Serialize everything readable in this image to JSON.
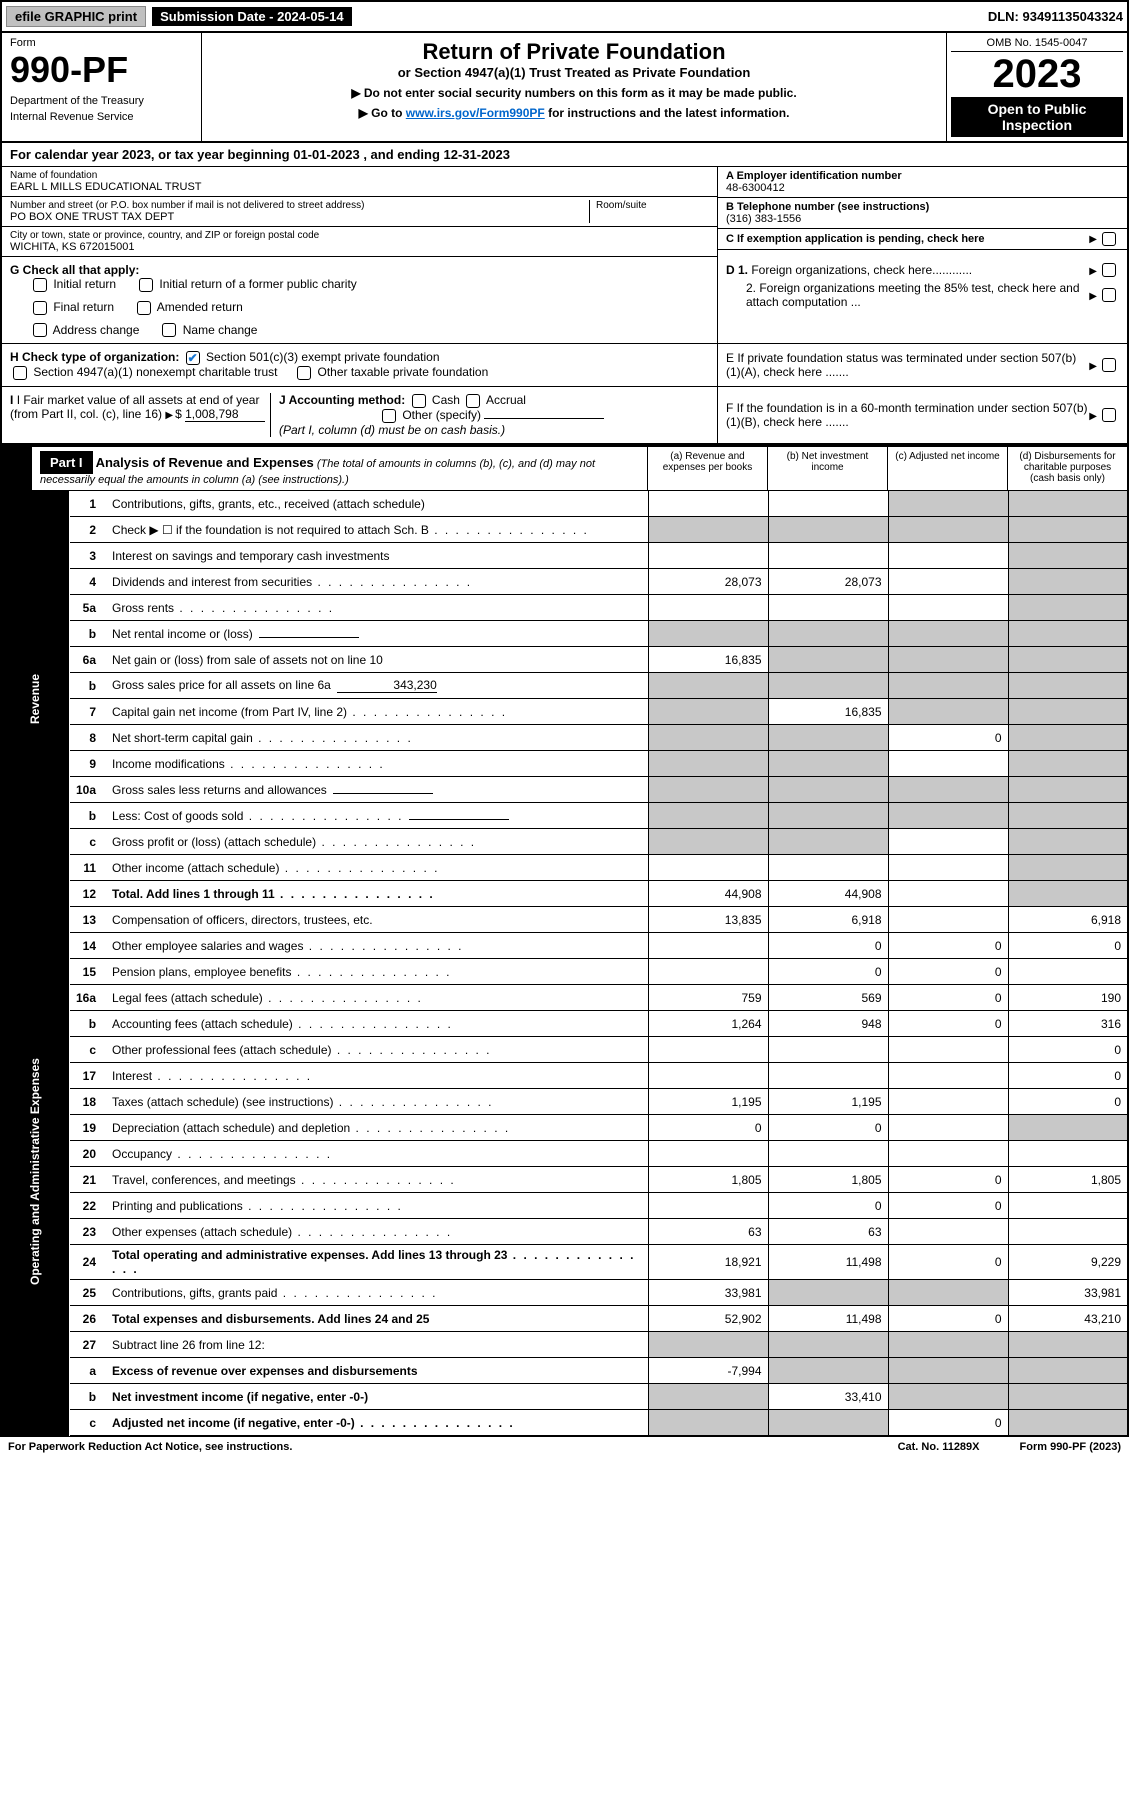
{
  "top_bar": {
    "efile_label": "efile GRAPHIC print",
    "submission_label": "Submission Date - 2024-05-14",
    "dln": "DLN: 93491135043324"
  },
  "header": {
    "form_word": "Form",
    "form_number": "990-PF",
    "dept": "Department of the Treasury",
    "irs": "Internal Revenue Service",
    "title": "Return of Private Foundation",
    "subtitle": "or Section 4947(a)(1) Trust Treated as Private Foundation",
    "note1": "▶ Do not enter social security numbers on this form as it may be made public.",
    "note2_pre": "▶ Go to ",
    "note2_link": "www.irs.gov/Form990PF",
    "note2_post": " for instructions and the latest information.",
    "omb": "OMB No. 1545-0047",
    "year": "2023",
    "open": "Open to Public Inspection"
  },
  "cal_year": "For calendar year 2023, or tax year beginning 01-01-2023            , and ending 12-31-2023",
  "info": {
    "name_label": "Name of foundation",
    "name_value": "EARL L MILLS EDUCATIONAL TRUST",
    "addr_label": "Number and street (or P.O. box number if mail is not delivered to street address)",
    "addr_value": "PO BOX ONE TRUST TAX DEPT",
    "room_label": "Room/suite",
    "city_label": "City or town, state or province, country, and ZIP or foreign postal code",
    "city_value": "WICHITA, KS  672015001",
    "a_label": "A Employer identification number",
    "a_value": "48-6300412",
    "b_label": "B Telephone number (see instructions)",
    "b_value": "(316) 383-1556",
    "c_label": "C If exemption application is pending, check here",
    "d1_label": "D 1. Foreign organizations, check here............",
    "d2_label": "2. Foreign organizations meeting the 85% test, check here and attach computation ...",
    "e_label": "E  If private foundation status was terminated under section 507(b)(1)(A), check here .......",
    "f_label": "F  If the foundation is in a 60-month termination under section 507(b)(1)(B), check here ......."
  },
  "g": {
    "label": "G Check all that apply:",
    "opts": [
      "Initial return",
      "Final return",
      "Address change",
      "Initial return of a former public charity",
      "Amended return",
      "Name change"
    ]
  },
  "h": {
    "label": "H Check type of organization:",
    "opt1": "Section 501(c)(3) exempt private foundation",
    "opt2": "Section 4947(a)(1) nonexempt charitable trust",
    "opt3": "Other taxable private foundation"
  },
  "i": {
    "label": "I Fair market value of all assets at end of year (from Part II, col. (c), line 16)",
    "value": "1,008,798"
  },
  "j": {
    "label": "J Accounting method:",
    "opts": [
      "Cash",
      "Accrual",
      "Other (specify)"
    ],
    "note": "(Part I, column (d) must be on cash basis.)"
  },
  "part1": {
    "tag": "Part I",
    "title": "Analysis of Revenue and Expenses",
    "note": " (The total of amounts in columns (b), (c), and (d) may not necessarily equal the amounts in column (a) (see instructions).)",
    "col_a": "(a)  Revenue and expenses per books",
    "col_b": "(b)  Net investment income",
    "col_c": "(c)  Adjusted net income",
    "col_d": "(d)  Disbursements for charitable purposes (cash basis only)"
  },
  "side_labels": {
    "revenue": "Revenue",
    "expenses": "Operating and Administrative Expenses"
  },
  "lines": [
    {
      "n": "1",
      "d": "Contributions, gifts, grants, etc., received (attach schedule)",
      "a": "",
      "b": "",
      "c": "shade",
      "dd": "shade"
    },
    {
      "n": "2",
      "d": "Check ▶ ☐ if the foundation is not required to attach Sch. B",
      "a": "shade",
      "b": "shade",
      "c": "shade",
      "dd": "shade",
      "dots": true
    },
    {
      "n": "3",
      "d": "Interest on savings and temporary cash investments",
      "a": "",
      "b": "",
      "c": "",
      "dd": "shade"
    },
    {
      "n": "4",
      "d": "Dividends and interest from securities",
      "a": "28,073",
      "b": "28,073",
      "c": "",
      "dd": "shade",
      "dots": true
    },
    {
      "n": "5a",
      "d": "Gross rents",
      "a": "",
      "b": "",
      "c": "",
      "dd": "shade",
      "dots": true
    },
    {
      "n": "b",
      "d": "Net rental income or (loss)",
      "a": "shade",
      "b": "shade",
      "c": "shade",
      "dd": "shade",
      "inline": ""
    },
    {
      "n": "6a",
      "d": "Net gain or (loss) from sale of assets not on line 10",
      "a": "16,835",
      "b": "shade",
      "c": "shade",
      "dd": "shade"
    },
    {
      "n": "b",
      "d": "Gross sales price for all assets on line 6a",
      "a": "shade",
      "b": "shade",
      "c": "shade",
      "dd": "shade",
      "inline": "343,230"
    },
    {
      "n": "7",
      "d": "Capital gain net income (from Part IV, line 2)",
      "a": "shade",
      "b": "16,835",
      "c": "shade",
      "dd": "shade",
      "dots": true
    },
    {
      "n": "8",
      "d": "Net short-term capital gain",
      "a": "shade",
      "b": "shade",
      "c": "0",
      "dd": "shade",
      "dots": true
    },
    {
      "n": "9",
      "d": "Income modifications",
      "a": "shade",
      "b": "shade",
      "c": "",
      "dd": "shade",
      "dots": true
    },
    {
      "n": "10a",
      "d": "Gross sales less returns and allowances",
      "a": "shade",
      "b": "shade",
      "c": "shade",
      "dd": "shade",
      "inline": ""
    },
    {
      "n": "b",
      "d": "Less: Cost of goods sold",
      "a": "shade",
      "b": "shade",
      "c": "shade",
      "dd": "shade",
      "inline": "",
      "dots": true
    },
    {
      "n": "c",
      "d": "Gross profit or (loss) (attach schedule)",
      "a": "shade",
      "b": "shade",
      "c": "",
      "dd": "shade",
      "dots": true
    },
    {
      "n": "11",
      "d": "Other income (attach schedule)",
      "a": "",
      "b": "",
      "c": "",
      "dd": "shade",
      "dots": true
    },
    {
      "n": "12",
      "d": "Total. Add lines 1 through 11",
      "a": "44,908",
      "b": "44,908",
      "c": "",
      "dd": "shade",
      "bold": true,
      "dots": true
    },
    {
      "n": "13",
      "d": "Compensation of officers, directors, trustees, etc.",
      "a": "13,835",
      "b": "6,918",
      "c": "",
      "dd": "6,918"
    },
    {
      "n": "14",
      "d": "Other employee salaries and wages",
      "a": "",
      "b": "0",
      "c": "0",
      "dd": "0",
      "dots": true
    },
    {
      "n": "15",
      "d": "Pension plans, employee benefits",
      "a": "",
      "b": "0",
      "c": "0",
      "dd": "",
      "dots": true
    },
    {
      "n": "16a",
      "d": "Legal fees (attach schedule)",
      "a": "759",
      "b": "569",
      "c": "0",
      "dd": "190",
      "dots": true
    },
    {
      "n": "b",
      "d": "Accounting fees (attach schedule)",
      "a": "1,264",
      "b": "948",
      "c": "0",
      "dd": "316",
      "dots": true
    },
    {
      "n": "c",
      "d": "Other professional fees (attach schedule)",
      "a": "",
      "b": "",
      "c": "",
      "dd": "0",
      "dots": true
    },
    {
      "n": "17",
      "d": "Interest",
      "a": "",
      "b": "",
      "c": "",
      "dd": "0",
      "dots": true
    },
    {
      "n": "18",
      "d": "Taxes (attach schedule) (see instructions)",
      "a": "1,195",
      "b": "1,195",
      "c": "",
      "dd": "0",
      "dots": true
    },
    {
      "n": "19",
      "d": "Depreciation (attach schedule) and depletion",
      "a": "0",
      "b": "0",
      "c": "",
      "dd": "shade",
      "dots": true
    },
    {
      "n": "20",
      "d": "Occupancy",
      "a": "",
      "b": "",
      "c": "",
      "dd": "",
      "dots": true
    },
    {
      "n": "21",
      "d": "Travel, conferences, and meetings",
      "a": "1,805",
      "b": "1,805",
      "c": "0",
      "dd": "1,805",
      "dots": true
    },
    {
      "n": "22",
      "d": "Printing and publications",
      "a": "",
      "b": "0",
      "c": "0",
      "dd": "",
      "dots": true
    },
    {
      "n": "23",
      "d": "Other expenses (attach schedule)",
      "a": "63",
      "b": "63",
      "c": "",
      "dd": "",
      "dots": true
    },
    {
      "n": "24",
      "d": "Total operating and administrative expenses. Add lines 13 through 23",
      "a": "18,921",
      "b": "11,498",
      "c": "0",
      "dd": "9,229",
      "bold": true,
      "dots": true
    },
    {
      "n": "25",
      "d": "Contributions, gifts, grants paid",
      "a": "33,981",
      "b": "shade",
      "c": "shade",
      "dd": "33,981",
      "dots": true
    },
    {
      "n": "26",
      "d": "Total expenses and disbursements. Add lines 24 and 25",
      "a": "52,902",
      "b": "11,498",
      "c": "0",
      "dd": "43,210",
      "bold": true
    },
    {
      "n": "27",
      "d": "Subtract line 26 from line 12:",
      "a": "shade",
      "b": "shade",
      "c": "shade",
      "dd": "shade"
    },
    {
      "n": "a",
      "d": "Excess of revenue over expenses and disbursements",
      "a": "-7,994",
      "b": "shade",
      "c": "shade",
      "dd": "shade",
      "bold": true
    },
    {
      "n": "b",
      "d": "Net investment income (if negative, enter -0-)",
      "a": "shade",
      "b": "33,410",
      "c": "shade",
      "dd": "shade",
      "bold": true
    },
    {
      "n": "c",
      "d": "Adjusted net income (if negative, enter -0-)",
      "a": "shade",
      "b": "shade",
      "c": "0",
      "dd": "shade",
      "bold": true,
      "dots": true
    }
  ],
  "footer": {
    "left": "For Paperwork Reduction Act Notice, see instructions.",
    "mid": "Cat. No. 11289X",
    "right": "Form 990-PF (2023)"
  },
  "colors": {
    "shade": "#c8c8c8",
    "link": "#0066cc",
    "check": "#1976d2"
  }
}
